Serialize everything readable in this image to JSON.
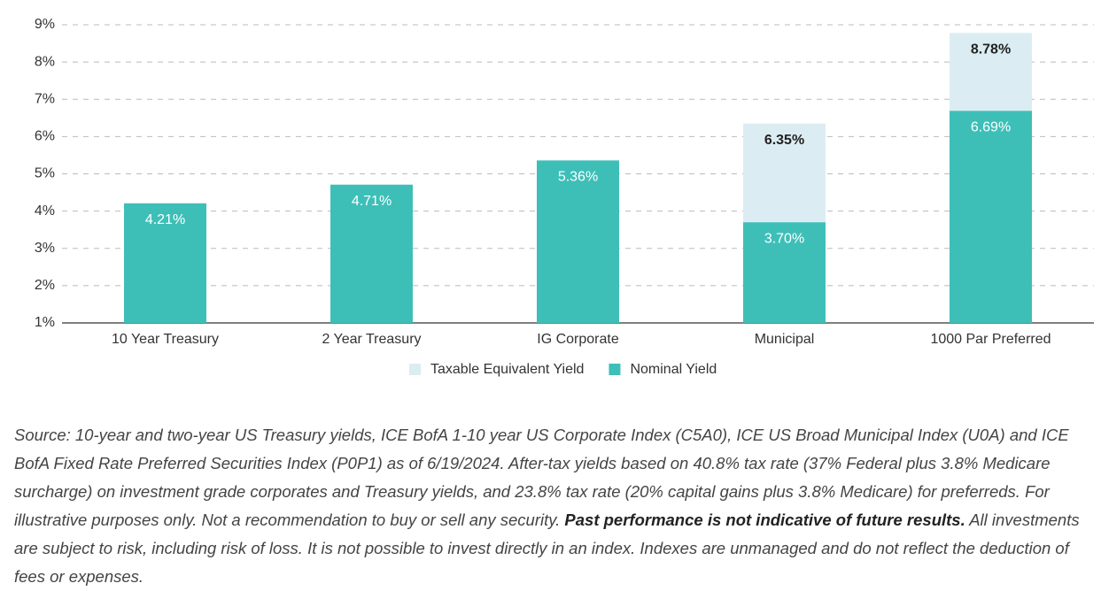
{
  "chart_data": {
    "type": "bar",
    "categories": [
      "10 Year Treasury",
      "2 Year Treasury",
      "IG Corporate",
      "Municipal",
      "1000 Par Preferred"
    ],
    "series": [
      {
        "name": "Taxable Equivalent Yield",
        "color": "#dbedf3",
        "values": [
          null,
          null,
          null,
          6.35,
          8.78
        ],
        "value_labels": [
          null,
          null,
          null,
          "6.35%",
          "8.78%"
        ]
      },
      {
        "name": "Nominal Yield",
        "color": "#3dbfb8",
        "values": [
          4.21,
          4.71,
          5.36,
          3.7,
          6.69
        ],
        "value_labels": [
          "4.21%",
          "4.71%",
          "5.36%",
          "3.70%",
          "6.69%"
        ]
      }
    ],
    "ylim": [
      1,
      9
    ],
    "yticks": [
      {
        "value": 1,
        "label": "1%"
      },
      {
        "value": 2,
        "label": "2%"
      },
      {
        "value": 3,
        "label": "3%"
      },
      {
        "value": 4,
        "label": "4%"
      },
      {
        "value": 5,
        "label": "5%"
      },
      {
        "value": 6,
        "label": "6%"
      },
      {
        "value": 7,
        "label": "7%"
      },
      {
        "value": 8,
        "label": "8%"
      },
      {
        "value": 9,
        "label": "9%"
      }
    ],
    "grid": true,
    "legend": "bottom"
  },
  "note": [
    "Source: 10-year and two-year US Treasury yields, ICE BofA 1-10 year US Corporate Index (C5A0), ICE US Broad Municipal Index (U0A) and ICE BofA Fixed Rate Preferred Securities Index (P0P1) as of 6/19/2024. After-tax yields based on 40.8% tax rate (37% Federal plus 3.8% Medicare surcharge) on investment grade corporates and Treasury yields, and 23.8% tax rate (20% capital gains plus 3.8% Medicare) for preferreds. For illustrative purposes only. Not a recommendation to buy or sell any security. ",
    "Past performance is not indicative of future results.",
    " All investments are subject to risk, including risk of loss. It is not possible to invest directly in an index. Indexes are unmanaged and do not reflect the deduction of fees or expenses."
  ]
}
